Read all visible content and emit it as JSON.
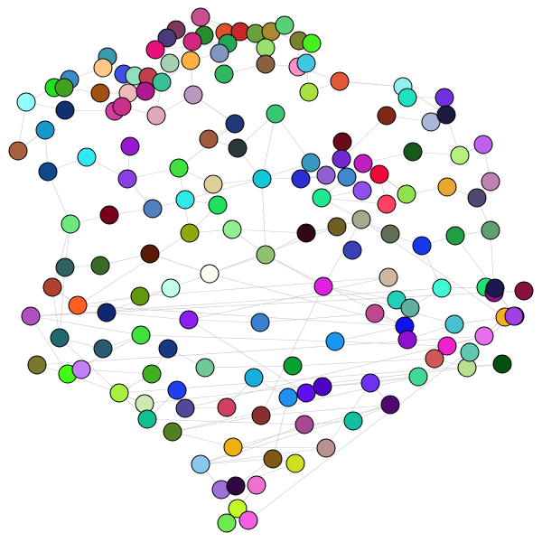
{
  "graph": {
    "kind": "force-directed network",
    "directed": false,
    "labels_visible": false,
    "node_outline_color": "#000000",
    "edge_color": "#c8c8c8",
    "background_color": "#ffffff",
    "nodes": [
      {
        "id": "n1",
        "color": "#c8508c"
      },
      {
        "id": "n2",
        "color": "#7a3a5a"
      },
      {
        "id": "n3",
        "color": "#e05030"
      },
      {
        "id": "n4",
        "color": "#c8282a"
      },
      {
        "id": "n5",
        "color": "#6aa040"
      },
      {
        "id": "n6",
        "color": "#a88a30"
      },
      {
        "id": "n7",
        "color": "#58d078"
      },
      {
        "id": "n8",
        "color": "#4a3a7a"
      },
      {
        "id": "n9",
        "color": "#2a8a30"
      },
      {
        "id": "n10",
        "color": "#d02880"
      },
      {
        "id": "n11",
        "color": "#e8107a"
      },
      {
        "id": "n12",
        "color": "#20a858"
      },
      {
        "id": "n13",
        "color": "#98e070"
      },
      {
        "id": "n14",
        "color": "#7a8030"
      },
      {
        "id": "n15",
        "color": "#48f020"
      },
      {
        "id": "n16",
        "color": "#3a9ab0"
      },
      {
        "id": "n17",
        "color": "#ffc888"
      },
      {
        "id": "n18",
        "color": "#3a8ac8"
      },
      {
        "id": "n19",
        "color": "#4050e0"
      },
      {
        "id": "n20",
        "color": "#90e0c0"
      },
      {
        "id": "n21",
        "color": "#c04050"
      },
      {
        "id": "n22",
        "color": "#a8d0b0"
      },
      {
        "id": "n23",
        "color": "#ffb040"
      },
      {
        "id": "n24",
        "color": "#8098c0"
      },
      {
        "id": "n25",
        "color": "#30b860"
      },
      {
        "id": "n26",
        "color": "#8a6040"
      },
      {
        "id": "n27",
        "color": "#ff90c8"
      },
      {
        "id": "n28",
        "color": "#40c8e0"
      },
      {
        "id": "n29",
        "color": "#20e020"
      },
      {
        "id": "n30",
        "color": "#40a020"
      },
      {
        "id": "n31",
        "color": "#a05010"
      },
      {
        "id": "n32",
        "color": "#f0b8b8"
      },
      {
        "id": "n33",
        "color": "#b01890"
      },
      {
        "id": "n34",
        "color": "#38c098"
      },
      {
        "id": "n35",
        "color": "#90ffff"
      },
      {
        "id": "n36",
        "color": "#103070"
      },
      {
        "id": "n37",
        "color": "#d040a0"
      },
      {
        "id": "n38",
        "color": "#c8308a"
      },
      {
        "id": "n39",
        "color": "#e0a8b8"
      },
      {
        "id": "n40",
        "color": "#b898c0"
      },
      {
        "id": "n41",
        "color": "#a8e040"
      },
      {
        "id": "n42",
        "color": "#e05838"
      },
      {
        "id": "n43",
        "color": "#90f0f0"
      },
      {
        "id": "n44",
        "color": "#20e0c0"
      },
      {
        "id": "n45",
        "color": "#7030e0"
      },
      {
        "id": "n46",
        "color": "#802818"
      },
      {
        "id": "n47",
        "color": "#a8b8d8"
      },
      {
        "id": "n48",
        "color": "#201840"
      },
      {
        "id": "n49",
        "color": "#1898c8"
      },
      {
        "id": "n50",
        "color": "#a86040"
      },
      {
        "id": "n51",
        "color": "#9818d0"
      },
      {
        "id": "n52",
        "color": "#203878"
      },
      {
        "id": "n53",
        "color": "#a05a40"
      },
      {
        "id": "n54",
        "color": "#283838"
      },
      {
        "id": "n55",
        "color": "#38c870"
      },
      {
        "id": "n56",
        "color": "#6a0a18"
      },
      {
        "id": "n57",
        "color": "#7028d0"
      },
      {
        "id": "n58",
        "color": "#c020c0"
      },
      {
        "id": "n59",
        "color": "#185818"
      },
      {
        "id": "n60",
        "color": "#b8f080"
      },
      {
        "id": "n61",
        "color": "#c060f0"
      },
      {
        "id": "n62",
        "color": "#c080b0"
      },
      {
        "id": "n63",
        "color": "#10488a"
      },
      {
        "id": "n64",
        "color": "#30e8f0"
      },
      {
        "id": "n65",
        "color": "#8a40e0"
      },
      {
        "id": "n66",
        "color": "#40e040"
      },
      {
        "id": "n67",
        "color": "#e0d098"
      },
      {
        "id": "n68",
        "color": "#10c8d8"
      },
      {
        "id": "n69",
        "color": "#3898c0"
      },
      {
        "id": "n70",
        "color": "#2a30d0"
      },
      {
        "id": "n71",
        "color": "#9060d0"
      },
      {
        "id": "n72",
        "color": "#4088d0"
      },
      {
        "id": "n73",
        "color": "#9050f0"
      },
      {
        "id": "n74",
        "color": "#20e890"
      },
      {
        "id": "n75",
        "color": "#ff4060"
      },
      {
        "id": "n76",
        "color": "#f00838"
      },
      {
        "id": "n77",
        "color": "#90e050"
      },
      {
        "id": "n78",
        "color": "#e8a830"
      },
      {
        "id": "n79",
        "color": "#504870"
      },
      {
        "id": "n80",
        "color": "#70e880"
      },
      {
        "id": "n81",
        "color": "#78001a"
      },
      {
        "id": "n82",
        "color": "#5080c0"
      },
      {
        "id": "n83",
        "color": "#30e8e8"
      },
      {
        "id": "n84",
        "color": "#20e060"
      },
      {
        "id": "n85",
        "color": "#90a810"
      },
      {
        "id": "n86",
        "color": "#90f090"
      },
      {
        "id": "n87",
        "color": "#300818"
      },
      {
        "id": "n88",
        "color": "#706020"
      },
      {
        "id": "n89",
        "color": "#a8a890"
      },
      {
        "id": "n90",
        "color": "#607058"
      },
      {
        "id": "n91",
        "color": "#90c070"
      },
      {
        "id": "n92",
        "color": "#3840b8"
      },
      {
        "id": "n93",
        "color": "#1838f0"
      },
      {
        "id": "n94",
        "color": "#20a040"
      },
      {
        "id": "n95",
        "color": "#60a070"
      },
      {
        "id": "n96",
        "color": "#306060"
      },
      {
        "id": "n97",
        "color": "#3a6a28"
      },
      {
        "id": "n98",
        "color": "#5a1a08"
      },
      {
        "id": "n99",
        "color": "#f8fff0"
      },
      {
        "id": "n100",
        "color": "#d0b8a0"
      },
      {
        "id": "n101",
        "color": "#b04030"
      },
      {
        "id": "n102",
        "color": "#ff6020"
      },
      {
        "id": "n103",
        "color": "#609810"
      },
      {
        "id": "n104",
        "color": "#c0ffe8"
      },
      {
        "id": "n105",
        "color": "#e020e0"
      },
      {
        "id": "n106",
        "color": "#20d0b8"
      },
      {
        "id": "n107",
        "color": "#60b0a0"
      },
      {
        "id": "n108",
        "color": "#40f8d8"
      },
      {
        "id": "n109",
        "color": "#20e070"
      },
      {
        "id": "n110",
        "color": "#8a1088"
      },
      {
        "id": "n111",
        "color": "#8a1040"
      },
      {
        "id": "n112",
        "color": "#b050c0"
      },
      {
        "id": "n113",
        "color": "#102870"
      },
      {
        "id": "n114",
        "color": "#8a20f0"
      },
      {
        "id": "n115",
        "color": "#3880d0"
      },
      {
        "id": "n116",
        "color": "#c04890"
      },
      {
        "id": "n117",
        "color": "#1010f0"
      },
      {
        "id": "n118",
        "color": "#9010d0"
      },
      {
        "id": "n119",
        "color": "#48c0d0"
      },
      {
        "id": "n120",
        "color": "#f0b020"
      },
      {
        "id": "n121",
        "color": "#5878f0"
      },
      {
        "id": "n122",
        "color": "#206870"
      },
      {
        "id": "n123",
        "color": "#2a5a70"
      },
      {
        "id": "n124",
        "color": "#40e040"
      },
      {
        "id": "n125",
        "color": "#1898f0"
      },
      {
        "id": "n126",
        "color": "#f020d0"
      },
      {
        "id": "n127",
        "color": "#e870f0"
      },
      {
        "id": "n128",
        "color": "#787830"
      },
      {
        "id": "n129",
        "color": "#40ff10"
      },
      {
        "id": "n130",
        "color": "#c080f8"
      },
      {
        "id": "n131",
        "color": "#40b020"
      },
      {
        "id": "n132",
        "color": "#183880"
      },
      {
        "id": "n133",
        "color": "#70c898"
      },
      {
        "id": "n134",
        "color": "#08a030"
      },
      {
        "id": "n135",
        "color": "#d05858"
      },
      {
        "id": "n136",
        "color": "#b8e090"
      },
      {
        "id": "n137",
        "color": "#005010"
      },
      {
        "id": "n138",
        "color": "#a8f040"
      },
      {
        "id": "n139",
        "color": "#d0e8b0"
      },
      {
        "id": "n140",
        "color": "#10c090"
      },
      {
        "id": "n141",
        "color": "#2040f0"
      },
      {
        "id": "n142",
        "color": "#504898"
      },
      {
        "id": "n143",
        "color": "#d04060"
      },
      {
        "id": "n144",
        "color": "#18b0d8"
      },
      {
        "id": "n145",
        "color": "#2090f0"
      },
      {
        "id": "n146",
        "color": "#6010f0"
      },
      {
        "id": "n147",
        "color": "#5000c0"
      },
      {
        "id": "n148",
        "color": "#7030f0"
      },
      {
        "id": "n149",
        "color": "#40d898"
      },
      {
        "id": "n150",
        "color": "#508020"
      },
      {
        "id": "n151",
        "color": "#883030"
      },
      {
        "id": "n152",
        "color": "#a84890"
      },
      {
        "id": "n153",
        "color": "#10c0a0"
      },
      {
        "id": "n154",
        "color": "#500870"
      },
      {
        "id": "n155",
        "color": "#f0b010"
      },
      {
        "id": "n156",
        "color": "#b89090"
      },
      {
        "id": "n157",
        "color": "#88c8e8"
      },
      {
        "id": "n158",
        "color": "#805818"
      },
      {
        "id": "n159",
        "color": "#d0e020"
      },
      {
        "id": "n160",
        "color": "#a070d8"
      },
      {
        "id": "n161",
        "color": "#300840"
      },
      {
        "id": "n162",
        "color": "#f070d0"
      },
      {
        "id": "n163",
        "color": "#c0f828"
      },
      {
        "id": "n164",
        "color": "#70e850"
      },
      {
        "id": "n165",
        "color": "#f060e0"
      },
      {
        "id": "n166",
        "color": "#a040e0"
      },
      {
        "id": "n167",
        "color": "#1a1a50"
      },
      {
        "id": "n168",
        "color": "#60c8b0"
      },
      {
        "id": "n169",
        "color": "#30a0d0"
      },
      {
        "id": "n170",
        "color": "#808030"
      },
      {
        "id": "n171",
        "color": "#4a8ad0"
      }
    ]
  }
}
